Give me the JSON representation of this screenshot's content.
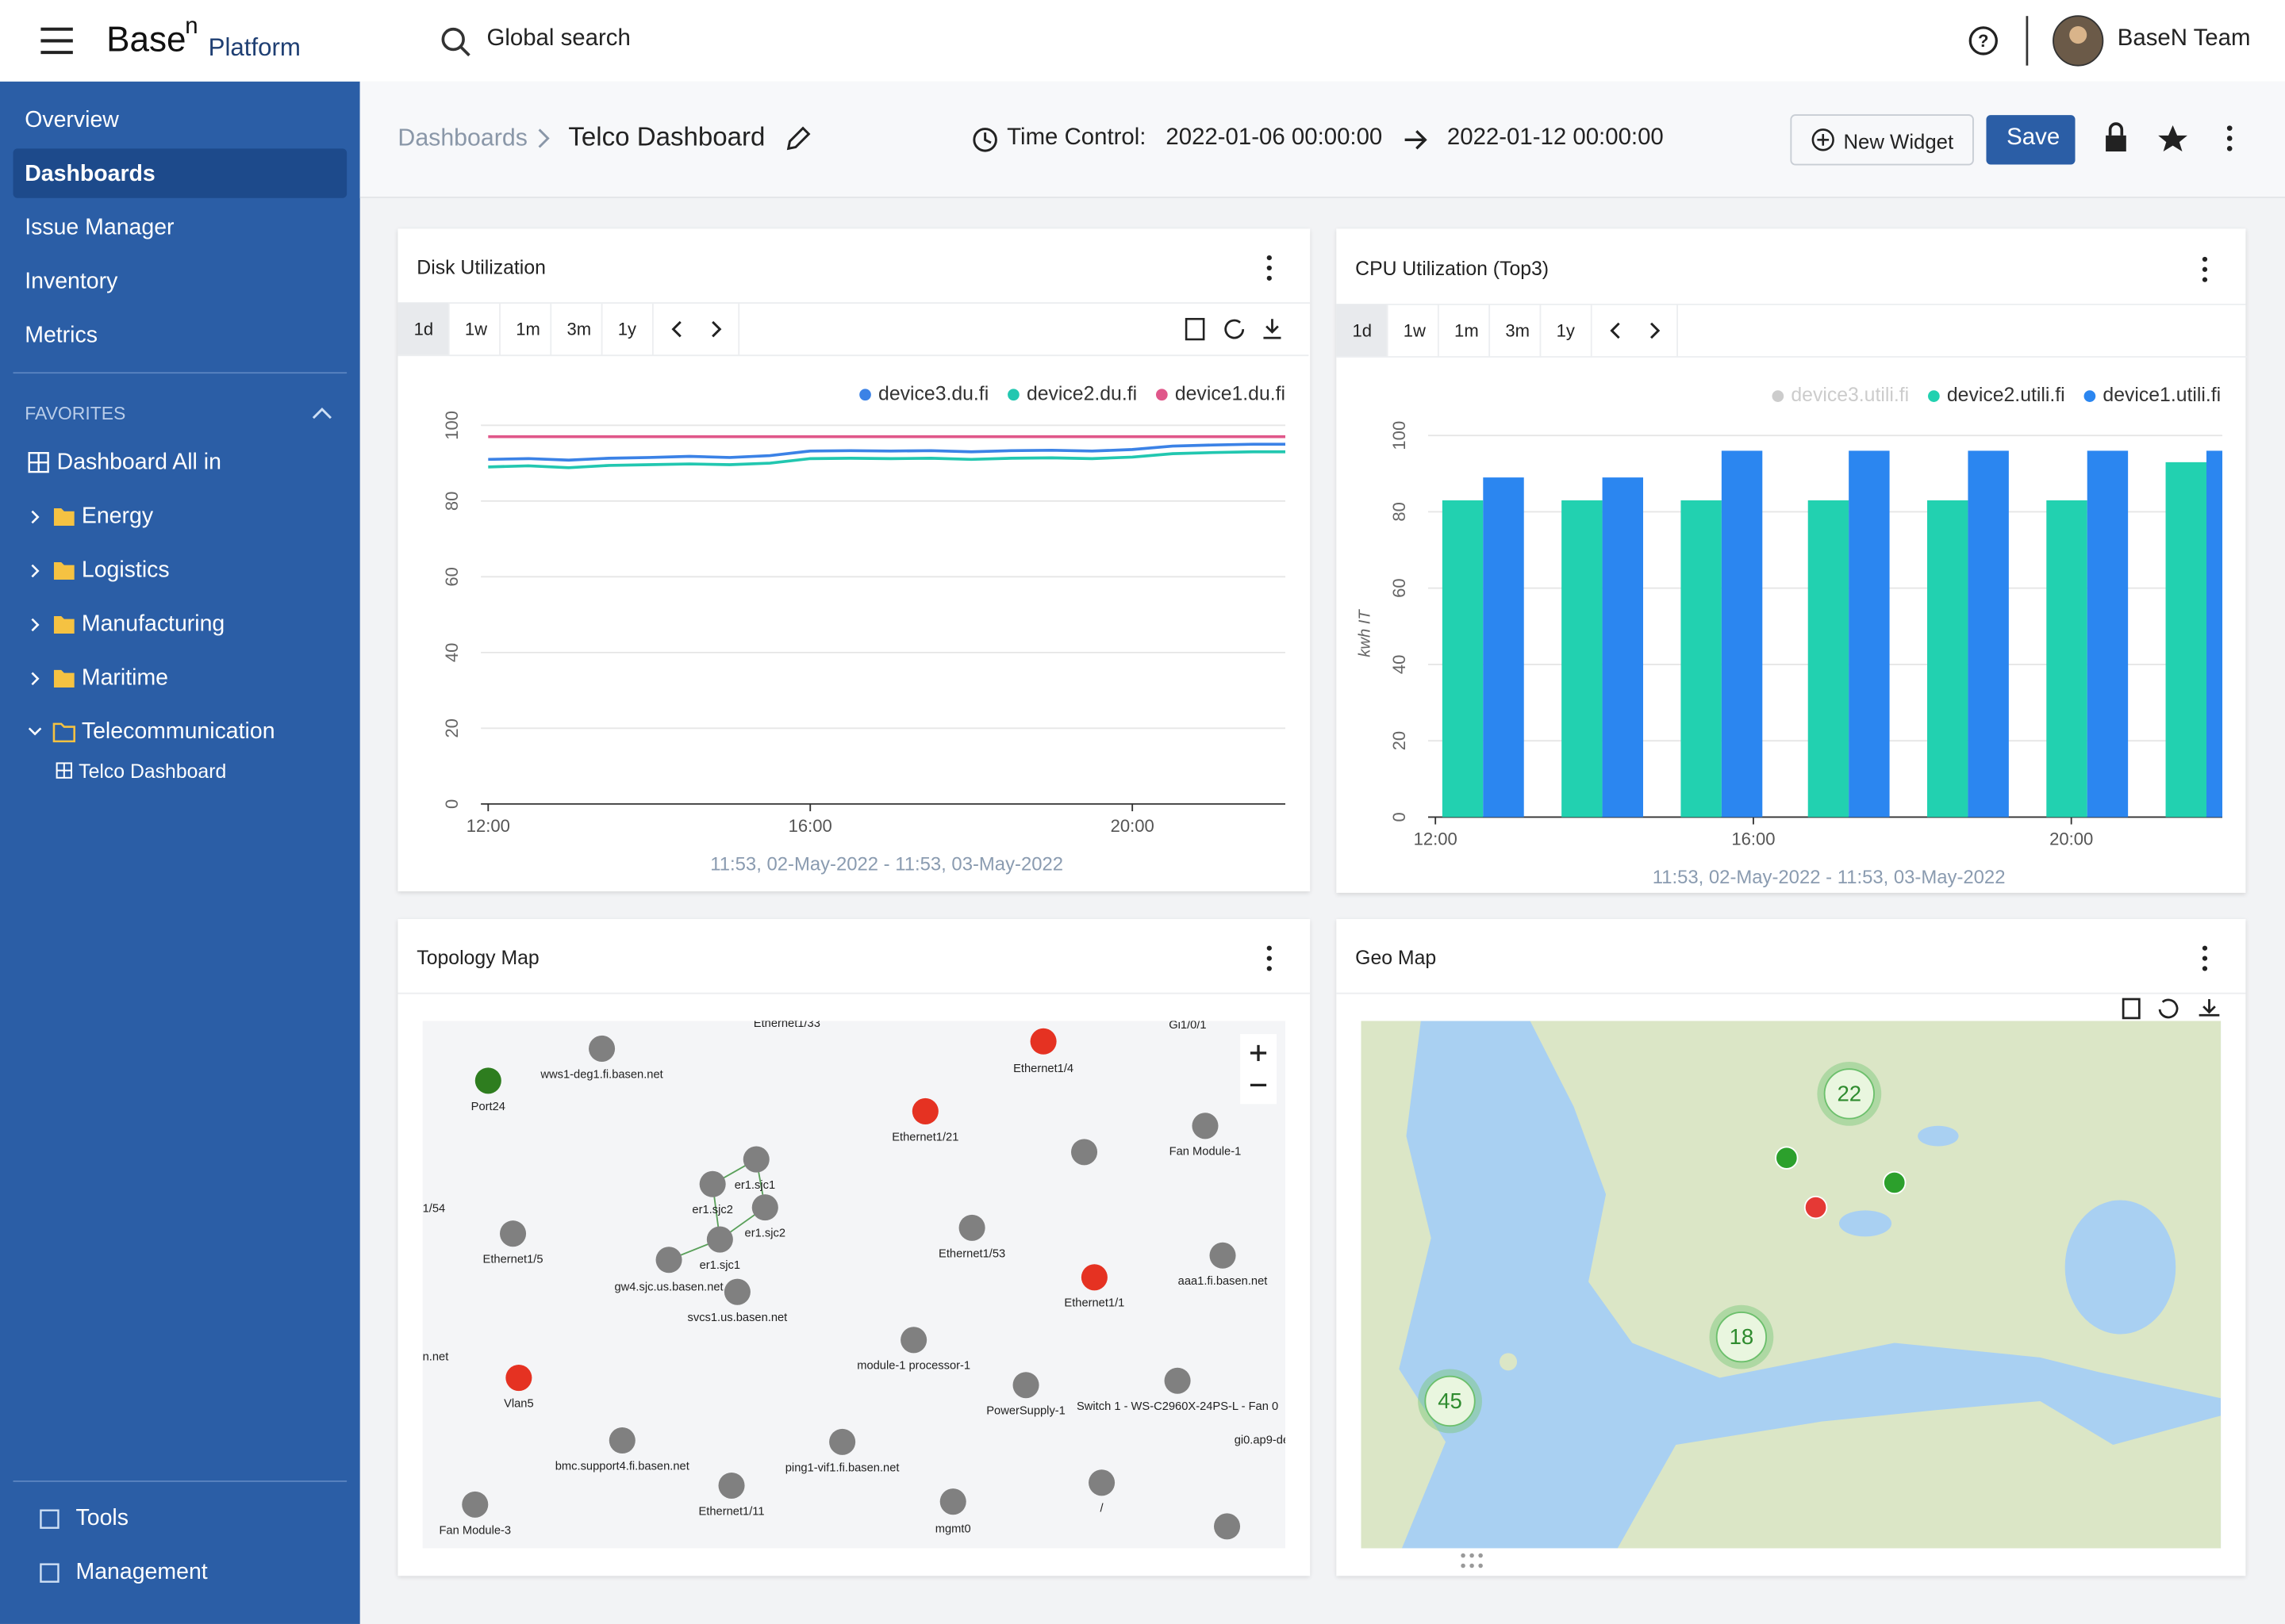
{
  "header": {
    "brand": "Base",
    "brand_sup": "n",
    "brand_sub": "Platform",
    "search_placeholder": "Global search",
    "user": "BaseN Team"
  },
  "sidebar": {
    "nav": [
      "Overview",
      "Dashboards",
      "Issue Manager",
      "Inventory",
      "Metrics"
    ],
    "active": 1,
    "favorites_title": "FAVORITES",
    "favorites": [
      "Dashboard All in",
      "Energy",
      "Logistics",
      "Manufacturing",
      "Maritime",
      "Telecommunication"
    ],
    "favorite_child": "Telco Dashboard",
    "bottom": [
      "Tools",
      "Management"
    ]
  },
  "toolbar": {
    "breadcrumb": "Dashboards",
    "title": "Telco Dashboard",
    "time_label": "Time Control:",
    "from": "2022-01-06 00:00:00",
    "to": "2022-01-12 00:00:00",
    "new_widget": "New Widget",
    "save": "Save"
  },
  "disk": {
    "title": "Disk Utilization",
    "ranges": [
      "1d",
      "1w",
      "1m",
      "3m",
      "1y"
    ],
    "chart": {
      "type": "line",
      "caption": "11:53, 02-May-2022 - 11:53, 03-May-2022",
      "x": [
        12,
        12.5,
        13,
        13.5,
        14,
        14.5,
        15,
        15.5,
        16,
        16.5,
        17,
        17.5,
        18,
        18.5,
        19,
        19.5,
        20,
        20.5,
        21,
        21.5,
        21.9
      ],
      "series": [
        {
          "name": "device3.du.fi",
          "color": "#3b82e6",
          "values": [
            91,
            91.2,
            90.8,
            91.3,
            91.5,
            91.8,
            91.5,
            92,
            93.2,
            93.3,
            93.2,
            93.3,
            93,
            93.3,
            93.4,
            93.2,
            93.6,
            94.5,
            94.8,
            95,
            95
          ]
        },
        {
          "name": "device2.du.fi",
          "color": "#22c7b0",
          "values": [
            89,
            89.3,
            88.8,
            89.4,
            89.6,
            89.8,
            89.6,
            90,
            91.2,
            91.3,
            91.2,
            91.3,
            91,
            91.3,
            91.4,
            91.2,
            91.6,
            92.5,
            92.8,
            93,
            93
          ]
        },
        {
          "name": "device1.du.fi",
          "color": "#e0578a",
          "values": [
            97,
            97,
            97,
            97,
            97,
            97,
            97,
            97,
            97,
            97,
            97,
            97,
            97,
            97,
            97,
            97,
            97,
            97,
            97,
            97,
            97
          ]
        }
      ],
      "xlim": [
        12,
        21.9
      ],
      "xticks": [
        {
          "value": 12,
          "label": "12:00"
        },
        {
          "value": 16,
          "label": "16:00"
        },
        {
          "value": 20,
          "label": "20:00"
        }
      ],
      "ylim": [
        0,
        100
      ],
      "yticks": [
        0,
        20,
        40,
        60,
        80,
        100
      ],
      "grid": true
    }
  },
  "cpu": {
    "title": "CPU Utilization (Top3)",
    "ranges": [
      "1d",
      "1w",
      "1m",
      "3m",
      "1y"
    ],
    "chart": {
      "type": "bar",
      "caption": "11:53, 02-May-2022 - 11:53, 03-May-2022",
      "y_label": "kwh IT",
      "x": [
        12.6,
        14.1,
        15.6,
        17.2,
        18.7,
        20.2,
        21.7
      ],
      "series": [
        {
          "name": "device3.utili.fi",
          "color": "#cccccc",
          "values": [
            null,
            null,
            null,
            null,
            null,
            null,
            null
          ]
        },
        {
          "name": "device2.utili.fi",
          "color": "#22d1b0",
          "values": [
            83,
            83,
            83,
            83,
            83,
            83,
            93
          ]
        },
        {
          "name": "device1.utili.fi",
          "color": "#2b86f0",
          "values": [
            89,
            89,
            96,
            96,
            96,
            96,
            96
          ]
        }
      ],
      "xlim": [
        12,
        21.9
      ],
      "xticks": [
        {
          "value": 12,
          "label": "12:00"
        },
        {
          "value": 16,
          "label": "16:00"
        },
        {
          "value": 20,
          "label": "20:00"
        }
      ],
      "ylim": [
        0,
        100
      ],
      "yticks": [
        0,
        20,
        40,
        60,
        80,
        100
      ],
      "grid": true
    }
  },
  "topology": {
    "title": "Topology Map",
    "nodes": [
      {
        "label": "Port24",
        "color": "#2e7d1f"
      },
      {
        "label": "wws1-deg1.fi.basen.net",
        "color": "#808080"
      },
      {
        "label": "Ethernet1/4",
        "color": "#e53222"
      },
      {
        "label": "Ethernet1/21",
        "color": "#e53222"
      },
      {
        "label": "",
        "color": "#808080"
      },
      {
        "label": "Fan Module-1",
        "color": "#808080"
      },
      {
        "label": "er1.sjc1",
        "color": "#808080"
      },
      {
        "label": "er1.sjc2",
        "color": "#808080"
      },
      {
        "label": "er1.sjc2",
        "color": "#808080"
      },
      {
        "label": "er1.sjc1",
        "color": "#808080"
      },
      {
        "label": "gw4.sjc.us.basen.net",
        "color": "#808080"
      },
      {
        "label": "svcs1.us.basen.net",
        "color": "#808080"
      },
      {
        "label": "Ethernet1/5",
        "color": "#808080"
      },
      {
        "label": "Ethernet1/53",
        "color": "#808080"
      },
      {
        "label": "aaa1.fi.basen.net",
        "color": "#808080"
      },
      {
        "label": "Ethernet1/1",
        "color": "#e53222"
      },
      {
        "label": "module-1 processor-1",
        "color": "#808080"
      },
      {
        "label": "Vlan5",
        "color": "#e53222"
      },
      {
        "label": "PowerSupply-1",
        "color": "#808080"
      },
      {
        "label": "Switch 1 - WS-C2960X-24PS-L - Fan 0",
        "color": "#808080"
      },
      {
        "label": "bmc.support4.fi.basen.net",
        "color": "#808080"
      },
      {
        "label": "ping1-vif1.fi.basen.net",
        "color": "#808080"
      },
      {
        "label": "Ethernet1/11",
        "color": "#808080"
      },
      {
        "label": "Fan Module-3",
        "color": "#808080"
      },
      {
        "label": "mgmt0",
        "color": "#808080"
      },
      {
        "label": "/",
        "color": "#808080"
      },
      {
        "label": "",
        "color": "#808080"
      }
    ],
    "fragments": [
      "Ethernet1/33",
      "Gi1/0/1",
      "1/54",
      "n.net",
      "gi0.ap9-de"
    ]
  },
  "geo": {
    "title": "Geo Map",
    "clusters": [
      22,
      18,
      45
    ],
    "markers": [
      {
        "color": "#2ca02c"
      },
      {
        "color": "#2ca02c"
      },
      {
        "color": "#e53935"
      }
    ]
  }
}
